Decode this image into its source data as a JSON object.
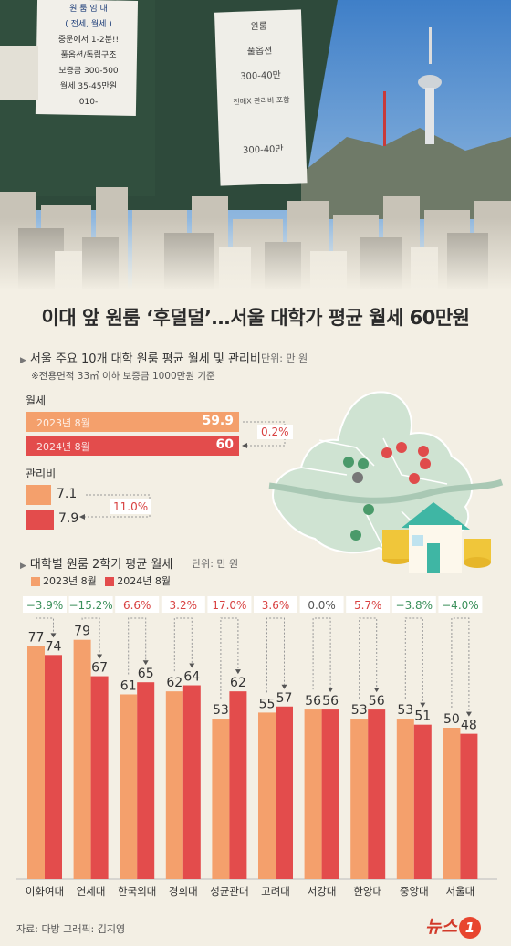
{
  "headline": "이대 앞 원룸 ‘후덜덜’…서울 대학가 평균 월세 60만원",
  "photo": {
    "sign1": [
      "원 룸 임 대",
      "( 전세, 월세 )",
      "중문에서 1-2분!!",
      "풀옵션/독립구조",
      "보증금 300-500",
      "월세 35-45만원",
      "010-"
    ],
    "sign2": [
      "원룸",
      "풀옵션",
      "300-40만",
      "전매X 관리비 포함",
      "300-40만"
    ]
  },
  "section1": {
    "title": "서울 주요 10개 대학 원룸 평균 월세 및 관리비",
    "unit": "단위: 만 원",
    "note": "※전용면적 33㎡ 이하 보증금 1000만원 기준",
    "rent_label": "월세",
    "fee_label": "관리비",
    "rent_bars": [
      {
        "label": "2023년 8월",
        "value": "59.9"
      },
      {
        "label": "2024년 8월",
        "value": "60"
      }
    ],
    "fee_bars": [
      {
        "value": "7.1"
      },
      {
        "value": "7.9"
      }
    ],
    "rent_change": "0.2%",
    "fee_change": "11.0%"
  },
  "section2": {
    "title": "대학별 원룸 2학기 평균 월세",
    "unit": "단위: 만 원",
    "legend": [
      "2023년 8월",
      "2024년 8월"
    ]
  },
  "colors": {
    "y2023": "#f4a06c",
    "y2024": "#e34c4c",
    "increase": "#d84040",
    "decrease": "#3a8f5a",
    "background": "#f3efe4"
  },
  "chart_data": [
    {
      "type": "bar",
      "title": "서울 주요 10개 대학 원룸 평균 월세 및 관리비",
      "categories": [
        "월세",
        "관리비"
      ],
      "series": [
        {
          "name": "2023년 8월",
          "values": [
            59.9,
            7.1
          ]
        },
        {
          "name": "2024년 8월",
          "values": [
            60,
            7.9
          ]
        }
      ],
      "changes": [
        "0.2%",
        "11.0%"
      ]
    },
    {
      "type": "bar",
      "title": "대학별 원룸 2학기 평균 월세",
      "categories": [
        "이화여대",
        "연세대",
        "한국외대",
        "경희대",
        "성균관대",
        "고려대",
        "서강대",
        "한양대",
        "중앙대",
        "서울대"
      ],
      "series": [
        {
          "name": "2023년 8월",
          "values": [
            77,
            79,
            61,
            62,
            53,
            55,
            56,
            53,
            53,
            50
          ]
        },
        {
          "name": "2024년 8월",
          "values": [
            74,
            67,
            65,
            64,
            62,
            57,
            56,
            56,
            51,
            48
          ]
        }
      ],
      "changes": [
        "−3.9%",
        "−15.2%",
        "6.6%",
        "3.2%",
        "17.0%",
        "3.6%",
        "0.0%",
        "5.7%",
        "−3.8%",
        "−4.0%"
      ]
    }
  ],
  "footer": {
    "source": "자료: 다방  그래픽: 김지영",
    "logo": "뉴스",
    "logo_num": "1"
  }
}
